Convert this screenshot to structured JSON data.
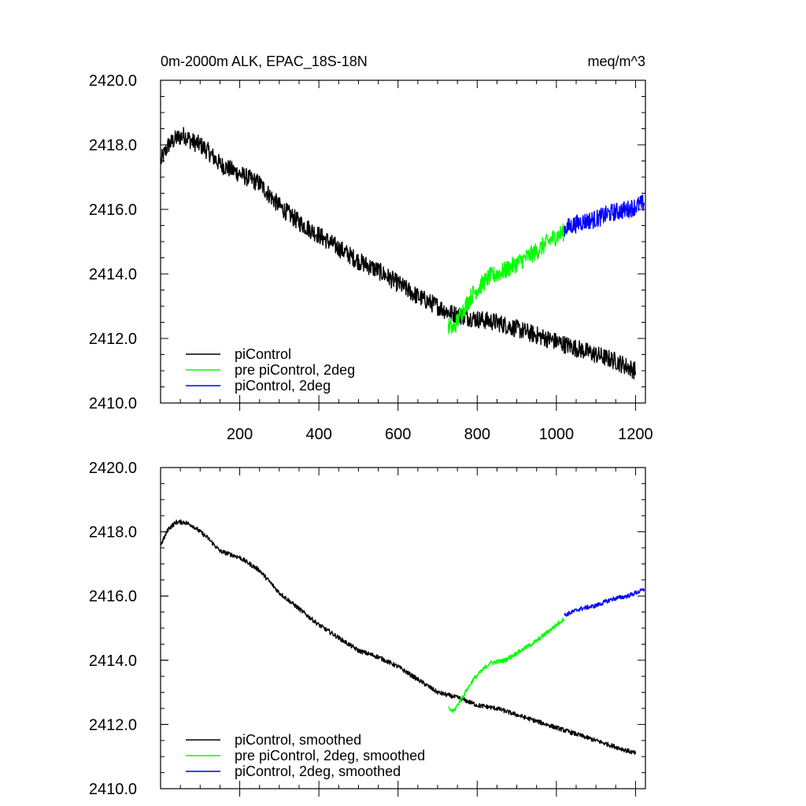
{
  "figure": {
    "title_left": "0m-2000m ALK, EPAC_18S-18N",
    "title_right": "meq/m^3"
  },
  "colors": {
    "piControl": "#000000",
    "pre_piControl_2deg": "#00ff00",
    "piControl_2deg": "#0000ff",
    "axis": "#000000"
  },
  "chart_data": [
    {
      "type": "line",
      "title": "0m-2000m ALK, EPAC_18S-18N",
      "units": "meq/m^3",
      "xlabel": "",
      "ylabel": "",
      "xlim": [
        0,
        1225
      ],
      "ylim": [
        2410,
        2420
      ],
      "xticks": [
        200,
        400,
        600,
        800,
        1000,
        1200
      ],
      "xtick_labels": [
        "200",
        "400",
        "600",
        "800",
        "1000",
        "1200"
      ],
      "yticks": [
        2410,
        2412,
        2414,
        2416,
        2418,
        2420
      ],
      "ytick_labels": [
        "2410.0",
        "2412.0",
        "2414.0",
        "2416.0",
        "2418.0",
        "2420.0"
      ],
      "legend_position": "bottom-left",
      "noise": 0.28,
      "series": [
        {
          "name": "piControl",
          "color_key": "piControl",
          "x": [
            1,
            20,
            40,
            60,
            80,
            100,
            120,
            150,
            200,
            250,
            300,
            350,
            400,
            450,
            500,
            550,
            600,
            650,
            700,
            730,
            760,
            800,
            850,
            900,
            950,
            1000,
            1050,
            1100,
            1150,
            1200
          ],
          "y": [
            2417.5,
            2418.0,
            2418.2,
            2418.3,
            2418.1,
            2418.0,
            2417.8,
            2417.4,
            2417.1,
            2416.8,
            2416.1,
            2415.6,
            2415.2,
            2414.8,
            2414.4,
            2414.1,
            2413.7,
            2413.3,
            2413.0,
            2412.8,
            2412.7,
            2412.6,
            2412.5,
            2412.3,
            2412.1,
            2411.9,
            2411.7,
            2411.5,
            2411.3,
            2411.0
          ]
        },
        {
          "name": "pre piControl, 2deg",
          "color_key": "pre_piControl_2deg",
          "x": [
            727,
            740,
            760,
            790,
            830,
            870,
            910,
            950,
            990,
            1020
          ],
          "y": [
            2412.4,
            2412.3,
            2412.8,
            2413.4,
            2413.9,
            2414.1,
            2414.4,
            2414.7,
            2415.1,
            2415.3
          ]
        },
        {
          "name": "piControl, 2deg",
          "color_key": "piControl_2deg",
          "x": [
            1020,
            1060,
            1100,
            1140,
            1180,
            1222
          ],
          "y": [
            2415.4,
            2415.6,
            2415.7,
            2415.9,
            2416.0,
            2416.2
          ]
        }
      ]
    },
    {
      "type": "line",
      "title": "",
      "xlabel": "",
      "ylabel": "",
      "xlim": [
        0,
        1225
      ],
      "ylim": [
        2410,
        2420
      ],
      "xticks": [
        200,
        400,
        600,
        800,
        1000,
        1200
      ],
      "xtick_labels": [],
      "yticks": [
        2410,
        2412,
        2414,
        2416,
        2418,
        2420
      ],
      "ytick_labels": [
        "2410.0",
        "2412.0",
        "2414.0",
        "2416.0",
        "2418.0",
        "2420.0"
      ],
      "legend_position": "bottom-left",
      "noise": 0.07,
      "series": [
        {
          "name": "piControl, smoothed",
          "color_key": "piControl",
          "x": [
            1,
            20,
            40,
            60,
            80,
            100,
            120,
            150,
            200,
            250,
            300,
            350,
            400,
            450,
            500,
            550,
            600,
            650,
            700,
            730,
            760,
            800,
            850,
            900,
            950,
            1000,
            1050,
            1100,
            1150,
            1200
          ],
          "y": [
            2417.6,
            2418.1,
            2418.3,
            2418.3,
            2418.2,
            2418.0,
            2417.8,
            2417.4,
            2417.2,
            2416.8,
            2416.1,
            2415.6,
            2415.1,
            2414.7,
            2414.3,
            2414.1,
            2413.8,
            2413.4,
            2413.0,
            2412.9,
            2412.8,
            2412.6,
            2412.5,
            2412.3,
            2412.1,
            2411.9,
            2411.7,
            2411.5,
            2411.3,
            2411.1
          ]
        },
        {
          "name": "pre piControl, 2deg, smoothed",
          "color_key": "pre_piControl_2deg",
          "x": [
            727,
            740,
            760,
            790,
            830,
            870,
            910,
            950,
            990,
            1020
          ],
          "y": [
            2412.5,
            2412.4,
            2412.8,
            2413.4,
            2413.9,
            2414.0,
            2414.3,
            2414.6,
            2415.0,
            2415.3
          ]
        },
        {
          "name": "piControl, 2deg, smoothed",
          "color_key": "piControl_2deg",
          "x": [
            1020,
            1060,
            1100,
            1140,
            1180,
            1222
          ],
          "y": [
            2415.4,
            2415.6,
            2415.7,
            2415.9,
            2416.0,
            2416.2
          ]
        }
      ]
    }
  ]
}
